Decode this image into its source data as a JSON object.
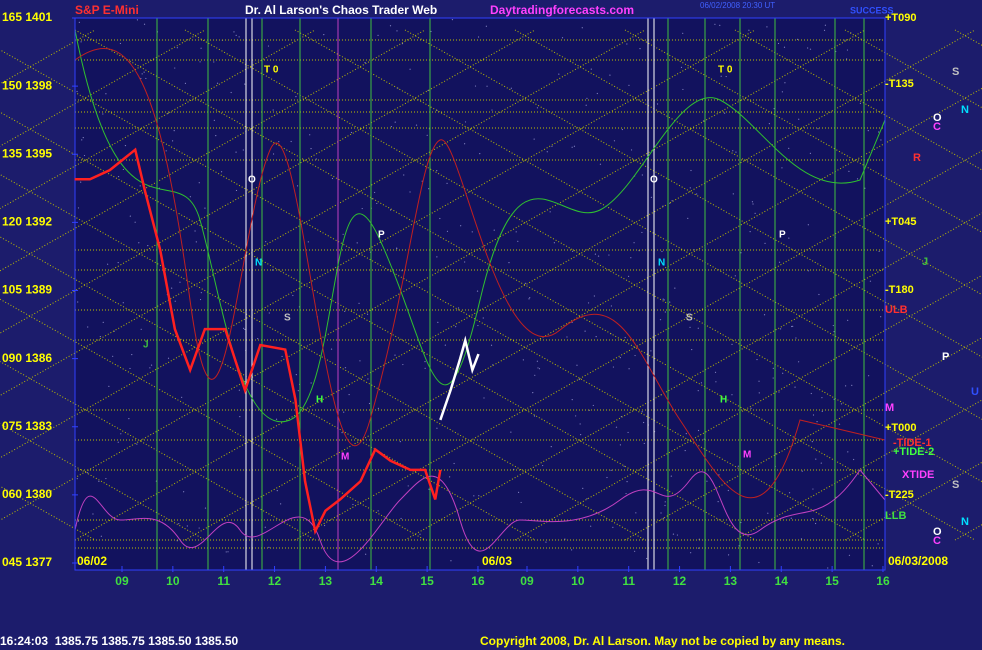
{
  "chart_data": {
    "type": "line",
    "title": "S&P E-Mini",
    "site_title": "Dr. Al Larson's Chaos Trader Web",
    "site_url": "Daytradingforecasts.com",
    "timestamp": "06/02/2008 20:30 UT",
    "brand": "SUCCESS",
    "ylim": [
      1377,
      1401
    ],
    "yticks": [
      {
        "value": 1401,
        "label": "165 1401"
      },
      {
        "value": 1398,
        "label": "150 1398"
      },
      {
        "value": 1395,
        "label": "135 1395"
      },
      {
        "value": 1392,
        "label": "120 1392"
      },
      {
        "value": 1389,
        "label": "105 1389"
      },
      {
        "value": 1386,
        "label": "090 1386"
      },
      {
        "value": 1383,
        "label": "075 1383"
      },
      {
        "value": 1380,
        "label": "060 1380"
      },
      {
        "value": 1377,
        "label": "045 1377"
      }
    ],
    "xlim": [
      8.076,
      16.04
    ],
    "xticks_day1": [
      {
        "value": 9,
        "label": "09"
      },
      {
        "value": 10,
        "label": "10"
      },
      {
        "value": 11,
        "label": "11"
      },
      {
        "value": 12,
        "label": "12"
      },
      {
        "value": 13,
        "label": "13"
      },
      {
        "value": 14,
        "label": "14"
      },
      {
        "value": 15,
        "label": "15"
      },
      {
        "value": 16,
        "label": "16"
      }
    ],
    "xticks_day2": [
      {
        "value": 9,
        "label": "09"
      },
      {
        "value": 10,
        "label": "10"
      },
      {
        "value": 11,
        "label": "11"
      },
      {
        "value": 12,
        "label": "12"
      },
      {
        "value": 13,
        "label": "13"
      },
      {
        "value": 14,
        "label": "14"
      },
      {
        "value": 15,
        "label": "15"
      },
      {
        "value": 16,
        "label": "16"
      }
    ],
    "date_day1": "06/02",
    "date_day2": "06/03",
    "date_end": "06/03/2008",
    "series": [
      {
        "name": "price",
        "color": "#ff2020",
        "x": [
          8.07,
          8.37,
          8.76,
          9.26,
          9.45,
          9.75,
          10.04,
          10.34,
          10.63,
          11.03,
          11.42,
          11.72,
          12.21,
          12.41,
          12.6,
          12.8,
          13.0,
          13.29,
          13.69,
          13.98,
          14.28,
          14.67,
          14.96,
          15.16,
          15.26
        ],
        "values": [
          1393.9,
          1393.9,
          1394.3,
          1395.2,
          1393.4,
          1390.8,
          1387.3,
          1385.5,
          1387.3,
          1387.3,
          1384.6,
          1386.6,
          1386.4,
          1384.2,
          1380.6,
          1378.4,
          1379.3,
          1379.8,
          1380.6,
          1382.0,
          1381.5,
          1381.1,
          1381.1,
          1379.8,
          1381.1
        ]
      },
      {
        "name": "price-late",
        "color": "#ffffff",
        "x": [
          15.26,
          15.46,
          15.65,
          15.75,
          15.89,
          16.01
        ],
        "values": [
          1383.3,
          1384.6,
          1386.0,
          1386.8,
          1385.5,
          1386.2
        ]
      }
    ],
    "right_labels": [
      "+T090",
      "-T135",
      "+T045",
      "-T180",
      "ULB",
      "M",
      "+T000",
      "-TIDE-1",
      "+TIDE-2",
      "XTIDE",
      "-T225",
      "LLB"
    ],
    "planet_labels": [
      "S",
      "N",
      "O",
      "C",
      "R",
      "J",
      "P",
      "U",
      "S",
      "N",
      "O",
      "C"
    ],
    "chart_labels": [
      "T 0",
      "T 0",
      "O",
      "O",
      "P",
      "P",
      "N",
      "N",
      "S",
      "S",
      "J",
      "H",
      "H",
      "M",
      "M"
    ],
    "status_line": "16:24:03  1385.75 1385.75 1385.50 1385.50",
    "copyright": "Copyright 2008, Dr. Al Larson. May not be copied by any means."
  }
}
